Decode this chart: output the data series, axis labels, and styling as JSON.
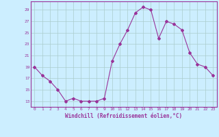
{
  "x": [
    0,
    1,
    2,
    3,
    4,
    5,
    6,
    7,
    8,
    9,
    10,
    11,
    12,
    13,
    14,
    15,
    16,
    17,
    18,
    19,
    20,
    21,
    22,
    23
  ],
  "y": [
    19,
    17.5,
    16.5,
    15,
    13,
    13.5,
    13,
    13,
    13,
    13.5,
    20,
    23,
    25.5,
    28.5,
    29.5,
    29,
    24,
    27,
    26.5,
    25.5,
    21.5,
    19.5,
    19,
    17.5
  ],
  "line_color": "#993399",
  "marker": "D",
  "marker_size": 2,
  "bg_color": "#cceeff",
  "grid_color": "#aacccc",
  "spine_color": "#993399",
  "xlabel": "Windchill (Refroidissement éolien,°C)",
  "xlabel_color": "#993399",
  "tick_color": "#993399",
  "yticks": [
    13,
    15,
    17,
    19,
    21,
    23,
    25,
    27,
    29
  ],
  "xticks": [
    0,
    1,
    2,
    3,
    4,
    5,
    6,
    7,
    8,
    9,
    10,
    11,
    12,
    13,
    14,
    15,
    16,
    17,
    18,
    19,
    20,
    21,
    22,
    23
  ],
  "ylim": [
    12.0,
    30.5
  ],
  "xlim": [
    -0.5,
    23.5
  ]
}
